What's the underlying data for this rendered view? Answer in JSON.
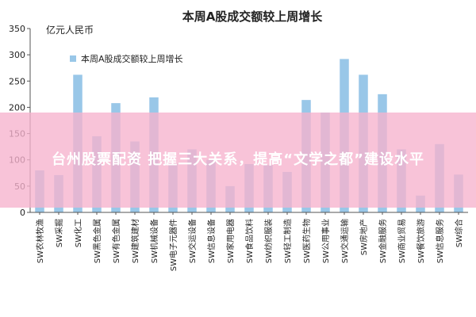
{
  "chart_data": {
    "type": "bar",
    "title": "本周A股成交额较上周增长",
    "ylabel": "亿元人民币",
    "xlabel": "",
    "ylim": [
      0,
      350
    ],
    "yticks": [
      0,
      50,
      100,
      150,
      200,
      250,
      300,
      350
    ],
    "grid": false,
    "legend_position": "top-left",
    "series": [
      {
        "name": "本周A股成交额较上周增长",
        "color": "#99c7e8",
        "values": [
          80,
          71,
          262,
          145,
          208,
          135,
          219,
          93,
          120,
          100,
          50,
          92,
          90,
          77,
          214,
          190,
          292,
          262,
          225,
          120,
          32,
          130,
          72
        ]
      }
    ],
    "categories": [
      "SW农林牧渔",
      "SW采掘",
      "SW化工",
      "SW黑色金属",
      "SW有色金属",
      "SW建筑建材",
      "SW机械设备",
      "SW电子元器件",
      "SW交运设备",
      "SW信息设备",
      "SW家用电器",
      "SW食品饮料",
      "SW纺织服装",
      "SW轻工制造",
      "SW医药生物",
      "SW公用事业",
      "SW交通运输",
      "SW房地产",
      "SW金融服务",
      "SW商业贸易",
      "SW餐饮旅游",
      "SW信息服务",
      "SW综合"
    ]
  },
  "banner": {
    "text": "台州股票配资 把握三大关系，提高“文学之都”建设水平"
  }
}
